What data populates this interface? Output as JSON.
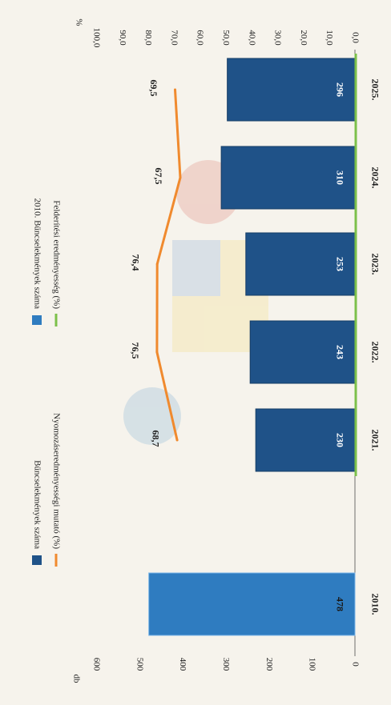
{
  "chart_data": {
    "type": "bar",
    "orientation": "rotated-90-clockwise",
    "categories": [
      "2010.",
      "2021.",
      "2022.",
      "2023.",
      "2024.",
      "2025."
    ],
    "left_axis": {
      "unit": "db",
      "ticks": [
        "0",
        "100",
        "200",
        "300",
        "400",
        "500",
        "600"
      ],
      "range": [
        0,
        600
      ]
    },
    "right_axis": {
      "unit": "%",
      "ticks": [
        "0,0",
        "10,0",
        "20,0",
        "30,0",
        "40,0",
        "50,0",
        "60,0",
        "70,0",
        "80,0",
        "90,0",
        "100,0"
      ],
      "range": [
        0,
        100
      ]
    },
    "series": [
      {
        "name": "2010. Bűncselekmények száma",
        "kind": "bar",
        "color": "#2f7cc0",
        "values": [
          478,
          null,
          null,
          null,
          null,
          null
        ],
        "labels": [
          "478",
          "",
          "",
          "",
          "",
          ""
        ]
      },
      {
        "name": "Bűncselekmények száma",
        "kind": "bar",
        "color": "#1f5288",
        "values": [
          null,
          230,
          243,
          253,
          310,
          296
        ],
        "labels": [
          "",
          "230",
          "243",
          "253",
          "310",
          "296"
        ]
      },
      {
        "name": "Nyomozáseredményességi mutató (%)",
        "kind": "line",
        "color": "#f08a2e",
        "values": [
          null,
          68.7,
          76.5,
          76.4,
          67.5,
          69.5
        ],
        "labels": [
          "",
          "68,7",
          "76,5",
          "76,4",
          "67,5",
          "69,5"
        ]
      },
      {
        "name": "Felderítési eredményesség (%)",
        "kind": "line",
        "color": "#7cc04a",
        "values": [
          null,
          0,
          0,
          0,
          0,
          0
        ]
      }
    ],
    "legend": {
      "placement": "top",
      "items": [
        {
          "label": "Bűncselekmények száma",
          "color": "#1f5288",
          "swatch": "bar"
        },
        {
          "label": "2010. Bűncselekmények száma",
          "color": "#2f7cc0",
          "swatch": "bar"
        },
        {
          "label": "Nyomozáseredményességi mutató (%)",
          "color": "#f08a2e",
          "swatch": "line"
        },
        {
          "label": "Felderítési eredményesség (%)",
          "color": "#7cc04a",
          "swatch": "line"
        }
      ]
    },
    "grid": false
  }
}
